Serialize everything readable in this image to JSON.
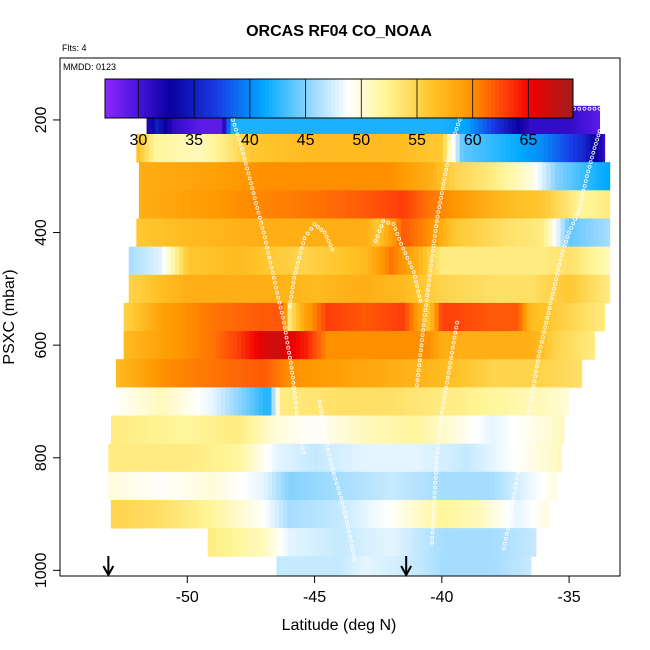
{
  "chart_data": {
    "type": "heatmap",
    "title": "ORCAS RF04 CO_NOAA",
    "flights_label": "Flts: 4",
    "date_label": "MMDD: 0123",
    "xlabel": "Latitude (deg N)",
    "ylabel": "PSXC (mbar)",
    "xlim": [
      -55,
      -33
    ],
    "ylim": [
      1010,
      90
    ],
    "x_ticks": [
      -50,
      -45,
      -40,
      -35
    ],
    "x_tick_labels": [
      "-50",
      "-45",
      "-40",
      "-35"
    ],
    "y_ticks": [
      200,
      400,
      600,
      800,
      1000
    ],
    "y_tick_labels": [
      "200",
      "400",
      "600",
      "800",
      "1000"
    ],
    "colorbar": {
      "min": 27,
      "max": 69,
      "ticks": [
        30,
        35,
        40,
        45,
        50,
        55,
        60,
        65
      ],
      "tick_labels": [
        "30",
        "35",
        "40",
        "45",
        "50",
        "55",
        "60",
        "65"
      ]
    },
    "arrow_latitudes": [
      -53.1,
      -41.4
    ],
    "bands": [
      {
        "p": 200,
        "x0": -51.6,
        "x1": -33.8,
        "stops": [
          [
            -51.6,
            31
          ],
          [
            -51.2,
            35
          ],
          [
            -50.5,
            31
          ],
          [
            -49.5,
            29
          ],
          [
            -48.6,
            29
          ],
          [
            -48.3,
            42
          ],
          [
            -40,
            42
          ],
          [
            -39,
            41
          ],
          [
            -37.5,
            35
          ],
          [
            -36.5,
            31
          ],
          [
            -35,
            31
          ],
          [
            -33.8,
            29
          ]
        ]
      },
      {
        "p": 250,
        "x0": -52.0,
        "x1": -33.6,
        "stops": [
          [
            -52,
            57
          ],
          [
            -51.3,
            52
          ],
          [
            -49.5,
            51
          ],
          [
            -48.5,
            53
          ],
          [
            -47.5,
            56
          ],
          [
            -45,
            57
          ],
          [
            -42,
            57
          ],
          [
            -40,
            56
          ],
          [
            -39.2,
            44
          ],
          [
            -37.5,
            42
          ],
          [
            -36,
            40
          ],
          [
            -34.5,
            36
          ],
          [
            -33.6,
            31
          ]
        ]
      },
      {
        "p": 300,
        "x0": -51.9,
        "x1": -33.4,
        "stops": [
          [
            -51.9,
            58
          ],
          [
            -49,
            59
          ],
          [
            -47,
            60
          ],
          [
            -44,
            60
          ],
          [
            -42,
            60
          ],
          [
            -40.5,
            58
          ],
          [
            -39.5,
            55
          ],
          [
            -38,
            53
          ],
          [
            -36.5,
            50
          ],
          [
            -35.5,
            45
          ],
          [
            -34.5,
            43
          ],
          [
            -33.4,
            41
          ]
        ]
      },
      {
        "p": 350,
        "x0": -51.9,
        "x1": -33.4,
        "stops": [
          [
            -51.9,
            58
          ],
          [
            -48,
            60
          ],
          [
            -45,
            61
          ],
          [
            -43,
            62
          ],
          [
            -41.5,
            63
          ],
          [
            -40.5,
            61
          ],
          [
            -39,
            59
          ],
          [
            -37.5,
            57
          ],
          [
            -36,
            56
          ],
          [
            -34.5,
            52
          ],
          [
            -33.4,
            53
          ]
        ]
      },
      {
        "p": 400,
        "x0": -52.0,
        "x1": -33.4,
        "stops": [
          [
            -52,
            56
          ],
          [
            -50,
            57
          ],
          [
            -47,
            58
          ],
          [
            -45,
            58
          ],
          [
            -43,
            58
          ],
          [
            -42.5,
            56
          ],
          [
            -41.5,
            62
          ],
          [
            -40.5,
            60
          ],
          [
            -39.5,
            56
          ],
          [
            -37.5,
            54
          ],
          [
            -36,
            53
          ],
          [
            -35,
            44
          ],
          [
            -33.4,
            46
          ]
        ]
      },
      {
        "p": 450,
        "x0": -52.3,
        "x1": -33.4,
        "stops": [
          [
            -52.3,
            46
          ],
          [
            -51,
            48
          ],
          [
            -50,
            56
          ],
          [
            -48,
            57
          ],
          [
            -45.5,
            55
          ],
          [
            -43,
            57
          ],
          [
            -42,
            61
          ],
          [
            -41,
            58
          ],
          [
            -40,
            53
          ],
          [
            -38,
            53
          ],
          [
            -36,
            53
          ],
          [
            -35,
            54
          ],
          [
            -33.4,
            51
          ]
        ]
      },
      {
        "p": 500,
        "x0": -52.3,
        "x1": -33.4,
        "stops": [
          [
            -52.3,
            55
          ],
          [
            -50,
            58
          ],
          [
            -47,
            58
          ],
          [
            -45,
            57
          ],
          [
            -43,
            58
          ],
          [
            -41.5,
            57
          ],
          [
            -40,
            55
          ],
          [
            -38,
            54
          ],
          [
            -36.5,
            54
          ],
          [
            -35,
            56
          ],
          [
            -33.4,
            53
          ]
        ]
      },
      {
        "p": 550,
        "x0": -52.5,
        "x1": -33.6,
        "stops": [
          [
            -52.5,
            55
          ],
          [
            -51,
            59
          ],
          [
            -49,
            61
          ],
          [
            -47,
            62
          ],
          [
            -46.2,
            62
          ],
          [
            -46,
            53
          ],
          [
            -45.5,
            58
          ],
          [
            -44.5,
            63
          ],
          [
            -43,
            62
          ],
          [
            -41.5,
            63
          ],
          [
            -40.5,
            56
          ],
          [
            -40,
            63
          ],
          [
            -38,
            62
          ],
          [
            -37,
            62
          ],
          [
            -36.5,
            57
          ],
          [
            -35,
            55
          ],
          [
            -33.6,
            53
          ]
        ]
      },
      {
        "p": 600,
        "x0": -52.5,
        "x1": -34.0,
        "stops": [
          [
            -52.5,
            57
          ],
          [
            -51,
            59
          ],
          [
            -49,
            61
          ],
          [
            -48,
            63
          ],
          [
            -47,
            66
          ],
          [
            -46.5,
            67
          ],
          [
            -45.3,
            64
          ],
          [
            -44.5,
            60
          ],
          [
            -42,
            60
          ],
          [
            -40.5,
            60
          ],
          [
            -40,
            58
          ],
          [
            -38,
            58
          ],
          [
            -36.5,
            58
          ],
          [
            -35.5,
            55
          ],
          [
            -34,
            53
          ]
        ]
      },
      {
        "p": 650,
        "x0": -52.8,
        "x1": -34.5,
        "stops": [
          [
            -52.8,
            57
          ],
          [
            -51,
            60
          ],
          [
            -49,
            61
          ],
          [
            -47,
            62
          ],
          [
            -46,
            60
          ],
          [
            -44,
            59
          ],
          [
            -42,
            58
          ],
          [
            -40,
            57
          ],
          [
            -38,
            55
          ],
          [
            -36,
            55
          ],
          [
            -34.5,
            54
          ]
        ]
      },
      {
        "p": 700,
        "x0": -52.8,
        "x1": -35.0,
        "stops": [
          [
            -52.8,
            49
          ],
          [
            -51,
            51
          ],
          [
            -49,
            48
          ],
          [
            -47.5,
            44
          ],
          [
            -46.8,
            42
          ],
          [
            -46.3,
            53
          ],
          [
            -44,
            54
          ],
          [
            -42,
            54
          ],
          [
            -40,
            53
          ],
          [
            -38,
            52
          ],
          [
            -36,
            51
          ],
          [
            -35,
            50
          ]
        ]
      },
      {
        "p": 750,
        "x0": -53.0,
        "x1": -35.2,
        "stops": [
          [
            -53,
            53
          ],
          [
            -50,
            52
          ],
          [
            -48,
            53
          ],
          [
            -46.5,
            50
          ],
          [
            -45,
            49
          ],
          [
            -43,
            51
          ],
          [
            -41,
            52
          ],
          [
            -39.5,
            50
          ],
          [
            -38,
            48
          ],
          [
            -36,
            50
          ],
          [
            -35.2,
            51
          ]
        ]
      },
      {
        "p": 800,
        "x0": -53.1,
        "x1": -35.3,
        "stops": [
          [
            -53.1,
            53
          ],
          [
            -50,
            53
          ],
          [
            -48,
            52
          ],
          [
            -46.5,
            48
          ],
          [
            -45,
            47
          ],
          [
            -43,
            48
          ],
          [
            -41,
            48
          ],
          [
            -39,
            47
          ],
          [
            -37,
            49
          ],
          [
            -35.3,
            51
          ]
        ]
      },
      {
        "p": 850,
        "x0": -53.1,
        "x1": -35.5,
        "stops": [
          [
            -53.1,
            50
          ],
          [
            -51,
            49
          ],
          [
            -49,
            50
          ],
          [
            -47,
            48
          ],
          [
            -46,
            45
          ],
          [
            -44,
            46
          ],
          [
            -42,
            47
          ],
          [
            -40,
            46
          ],
          [
            -38,
            46
          ],
          [
            -36,
            49
          ],
          [
            -35.5,
            50
          ]
        ]
      },
      {
        "p": 900,
        "x0": -53.0,
        "x1": -35.8,
        "stops": [
          [
            -53,
            55
          ],
          [
            -51,
            54
          ],
          [
            -49,
            52
          ],
          [
            -47,
            49
          ],
          [
            -46,
            46
          ],
          [
            -44,
            47
          ],
          [
            -42,
            49
          ],
          [
            -40,
            52
          ],
          [
            -38.5,
            51
          ],
          [
            -37,
            48
          ],
          [
            -35.8,
            50
          ]
        ]
      },
      {
        "p": 950,
        "x0": -49.2,
        "x1": -36.3,
        "stops": [
          [
            -49.2,
            53
          ],
          [
            -48,
            52
          ],
          [
            -47,
            51
          ],
          [
            -46,
            48
          ],
          [
            -44,
            47
          ],
          [
            -42,
            48
          ],
          [
            -40,
            46
          ],
          [
            -38,
            46
          ],
          [
            -36.3,
            47
          ]
        ]
      },
      {
        "p": 1000,
        "x0": -46.5,
        "x1": -36.5,
        "stops": [
          [
            -46.5,
            47
          ],
          [
            -44,
            47
          ],
          [
            -43,
            48
          ],
          [
            -41,
            47
          ],
          [
            -40,
            46
          ],
          [
            -38,
            46
          ],
          [
            -36.5,
            47
          ]
        ]
      }
    ],
    "flight_tracks": [
      [
        [
          -51.2,
          185
        ],
        [
          -49.5,
          180
        ],
        [
          -48.5,
          180
        ],
        [
          -48.2,
          200
        ],
        [
          -47.8,
          260
        ],
        [
          -47.4,
          330
        ],
        [
          -47.0,
          400
        ],
        [
          -46.6,
          480
        ],
        [
          -46.2,
          560
        ],
        [
          -45.9,
          640
        ],
        [
          -45.7,
          720
        ],
        [
          -45.4,
          800
        ]
      ],
      [
        [
          -33.8,
          180
        ],
        [
          -37,
          180
        ],
        [
          -38.8,
          180
        ],
        [
          -39.3,
          200
        ],
        [
          -39.6,
          240
        ],
        [
          -39.8,
          280
        ],
        [
          -40.0,
          330
        ],
        [
          -40.2,
          380
        ],
        [
          -40.4,
          450
        ],
        [
          -40.6,
          520
        ],
        [
          -40.8,
          600
        ],
        [
          -41.0,
          680
        ]
      ],
      [
        [
          -44.3,
          430
        ],
        [
          -44.6,
          400
        ],
        [
          -45.0,
          385
        ],
        [
          -45.4,
          410
        ],
        [
          -45.8,
          480
        ],
        [
          -46.0,
          540
        ]
      ],
      [
        [
          -42.6,
          415
        ],
        [
          -42.3,
          380
        ],
        [
          -41.9,
          385
        ],
        [
          -41.6,
          420
        ],
        [
          -41.1,
          470
        ],
        [
          -40.8,
          530
        ]
      ],
      [
        [
          -33.8,
          220
        ],
        [
          -34.0,
          250
        ],
        [
          -34.3,
          300
        ],
        [
          -34.6,
          360
        ],
        [
          -35.0,
          400
        ],
        [
          -35.3,
          440
        ],
        [
          -35.6,
          500
        ],
        [
          -35.9,
          560
        ],
        [
          -36.2,
          620
        ],
        [
          -36.5,
          700
        ],
        [
          -36.9,
          800
        ],
        [
          -37.3,
          900
        ],
        [
          -37.6,
          970
        ]
      ],
      [
        [
          -44.8,
          700
        ],
        [
          -44.6,
          760
        ],
        [
          -44.3,
          820
        ],
        [
          -43.9,
          880
        ],
        [
          -43.6,
          940
        ],
        [
          -43.4,
          990
        ]
      ],
      [
        [
          -39.4,
          560
        ],
        [
          -39.7,
          640
        ],
        [
          -40.0,
          720
        ],
        [
          -40.2,
          800
        ],
        [
          -40.3,
          880
        ],
        [
          -40.4,
          960
        ]
      ]
    ]
  }
}
